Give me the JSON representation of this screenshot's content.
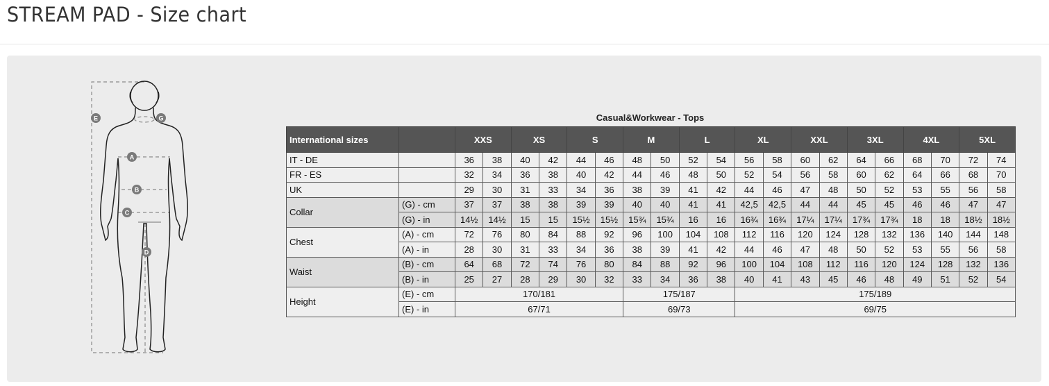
{
  "page_title": "STREAM PAD - Size chart",
  "table": {
    "title": "Casual&Workwear - Tops",
    "header_label": "International sizes",
    "sizes": [
      "XXS",
      "XS",
      "S",
      "M",
      "L",
      "XL",
      "XXL",
      "3XL",
      "4XL",
      "5XL"
    ],
    "rows": [
      {
        "label": "IT - DE",
        "unit": "",
        "shade": "light",
        "values": [
          "36",
          "38",
          "40",
          "42",
          "44",
          "46",
          "48",
          "50",
          "52",
          "54",
          "56",
          "58",
          "60",
          "62",
          "64",
          "66",
          "68",
          "70",
          "72",
          "74"
        ]
      },
      {
        "label": "FR - ES",
        "unit": "",
        "shade": "light",
        "values": [
          "32",
          "34",
          "36",
          "38",
          "40",
          "42",
          "44",
          "46",
          "48",
          "50",
          "52",
          "54",
          "56",
          "58",
          "60",
          "62",
          "64",
          "66",
          "68",
          "70"
        ]
      },
      {
        "label": "UK",
        "unit": "",
        "shade": "light",
        "values": [
          "29",
          "30",
          "31",
          "33",
          "34",
          "36",
          "38",
          "39",
          "41",
          "42",
          "44",
          "46",
          "47",
          "48",
          "50",
          "52",
          "53",
          "55",
          "56",
          "58"
        ]
      },
      {
        "label": "Collar",
        "unit": "(G) - cm",
        "shade": "dark",
        "span": 2,
        "values": [
          "37",
          "37",
          "38",
          "38",
          "39",
          "39",
          "40",
          "40",
          "41",
          "41",
          "42,5",
          "42,5",
          "44",
          "44",
          "45",
          "45",
          "46",
          "46",
          "47",
          "47"
        ]
      },
      {
        "unit": "(G)  - in",
        "shade": "dark",
        "values": [
          "14½",
          "14½",
          "15",
          "15",
          "15½",
          "15½",
          "15¾",
          "15¾",
          "16",
          "16",
          "16¾",
          "16¾",
          "17¼",
          "17¼",
          "17¾",
          "17¾",
          "18",
          "18",
          "18½",
          "18½"
        ]
      },
      {
        "label": "Chest",
        "unit": "(A) - cm",
        "shade": "light",
        "span": 2,
        "values": [
          "72",
          "76",
          "80",
          "84",
          "88",
          "92",
          "96",
          "100",
          "104",
          "108",
          "112",
          "116",
          "120",
          "124",
          "128",
          "132",
          "136",
          "140",
          "144",
          "148"
        ]
      },
      {
        "unit": "(A) - in",
        "shade": "light",
        "values": [
          "28",
          "30",
          "31",
          "33",
          "34",
          "36",
          "38",
          "39",
          "41",
          "42",
          "44",
          "46",
          "47",
          "48",
          "50",
          "52",
          "53",
          "55",
          "56",
          "58"
        ]
      },
      {
        "label": "Waist",
        "unit": "(B) - cm",
        "shade": "dark",
        "span": 2,
        "values": [
          "64",
          "68",
          "72",
          "74",
          "76",
          "80",
          "84",
          "88",
          "92",
          "96",
          "100",
          "104",
          "108",
          "112",
          "116",
          "120",
          "124",
          "128",
          "132",
          "136"
        ]
      },
      {
        "unit": "(B) - in",
        "shade": "dark",
        "values": [
          "25",
          "27",
          "28",
          "29",
          "30",
          "32",
          "33",
          "34",
          "36",
          "38",
          "40",
          "41",
          "43",
          "45",
          "46",
          "48",
          "49",
          "51",
          "52",
          "54"
        ]
      },
      {
        "label": "Height",
        "unit": "(E) - cm",
        "shade": "light",
        "span": 2,
        "merged": [
          {
            "value": "170/181",
            "cols": 6
          },
          {
            "value": "175/187",
            "cols": 4
          },
          {
            "value": "175/189",
            "cols": 10
          }
        ]
      },
      {
        "unit": "(E) - in",
        "shade": "light",
        "merged": [
          {
            "value": "67/71",
            "cols": 6
          },
          {
            "value": "69/73",
            "cols": 4
          },
          {
            "value": "69/75",
            "cols": 10
          }
        ]
      }
    ]
  },
  "figure": {
    "markers": {
      "a": "A",
      "b": "B",
      "c": "C",
      "d": "D",
      "e": "E",
      "g": "G"
    },
    "colors": {
      "outline": "#222222",
      "dashes": "#8a8a8a",
      "badge": "#7a7a7a"
    }
  }
}
